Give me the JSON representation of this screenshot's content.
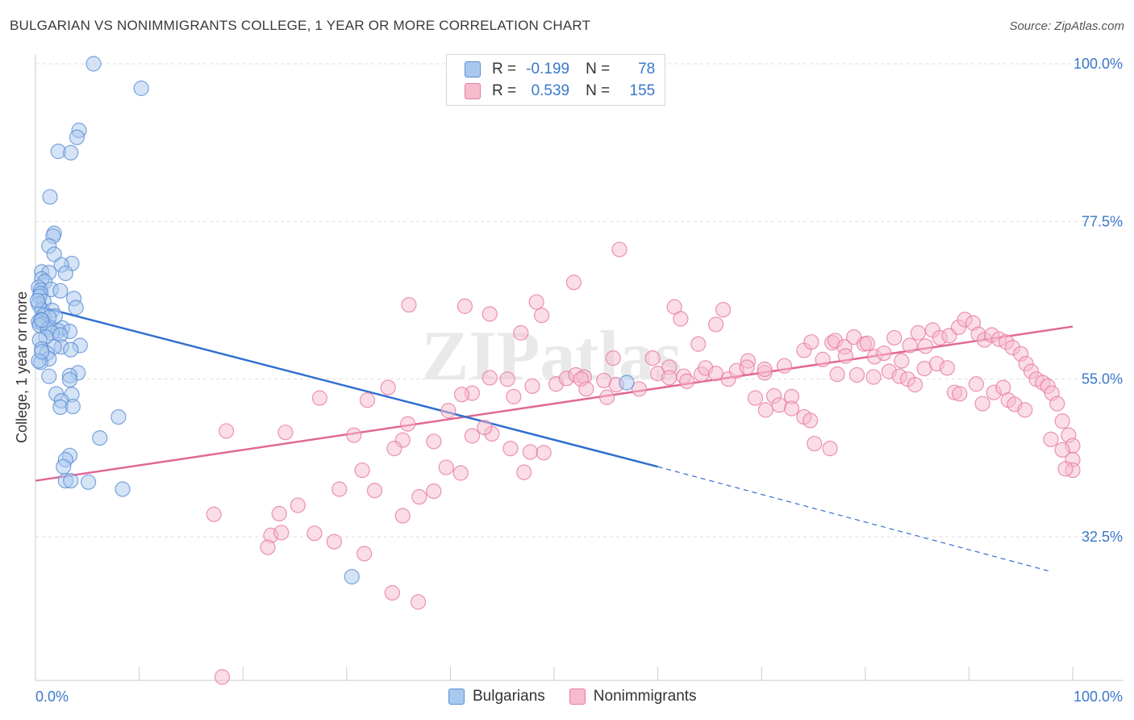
{
  "title": "BULGARIAN VS NONIMMIGRANTS COLLEGE, 1 YEAR OR MORE CORRELATION CHART",
  "source": "Source: ZipAtlas.com",
  "watermark": "ZIPatlas",
  "legend": {
    "rows": [
      {
        "r_label": "R =",
        "r_value": "-0.199",
        "n_label": "N =",
        "n_value": "78"
      },
      {
        "r_label": "R =",
        "r_value": "0.539",
        "n_label": "N =",
        "n_value": "155"
      }
    ]
  },
  "bottom_legend": [
    "Bulgarians",
    "Nonimmigrants"
  ],
  "colors": {
    "blue_fill": "#a9c8ee",
    "blue_stroke": "#5b8fd6",
    "blue_line": "#2f6fd0",
    "pink_fill": "#f6bccd",
    "pink_stroke": "#e8799d",
    "pink_line": "#e06896",
    "tick_label": "#3a78c9",
    "grid": "#dedede"
  },
  "chart_data": {
    "type": "scatter",
    "title": "BULGARIAN VS NONIMMIGRANTS COLLEGE, 1 YEAR OR MORE CORRELATION CHART",
    "ylabel": "College, 1 year or more",
    "xlabel": "",
    "xlim": [
      0,
      100
    ],
    "ylim": [
      12,
      100
    ],
    "x_tick_labels": [
      "0.0%",
      "100.0%"
    ],
    "y_ticks": [
      32.5,
      55.0,
      77.5,
      100.0
    ],
    "y_tick_labels": [
      "32.5%",
      "55.0%",
      "77.5%",
      "100.0%"
    ],
    "grid": true,
    "legend_position": "top-center",
    "series": [
      {
        "name": "Bulgarians",
        "r": -0.199,
        "n": 78,
        "trend": {
          "x0": 0,
          "y0": 65.5,
          "x1": 60,
          "y1": 42.5,
          "dash_x1": 98,
          "dash_y1": 27.5
        },
        "points": [
          [
            5.6,
            100
          ],
          [
            10.2,
            96.5
          ],
          [
            4.2,
            90.5
          ],
          [
            4.0,
            89.5
          ],
          [
            2.2,
            87.5
          ],
          [
            3.4,
            87.3
          ],
          [
            1.4,
            81
          ],
          [
            1.8,
            75.8
          ],
          [
            1.7,
            75.4
          ],
          [
            1.3,
            74
          ],
          [
            1.8,
            72.8
          ],
          [
            3.5,
            71.5
          ],
          [
            2.5,
            71.3
          ],
          [
            0.6,
            70.3
          ],
          [
            1.3,
            70.2
          ],
          [
            2.9,
            70.1
          ],
          [
            0.6,
            69.3
          ],
          [
            0.9,
            68.9
          ],
          [
            0.3,
            68.1
          ],
          [
            0.5,
            67.7
          ],
          [
            1.5,
            67.8
          ],
          [
            2.4,
            67.6
          ],
          [
            0.5,
            67.2
          ],
          [
            0.4,
            66.8
          ],
          [
            3.7,
            66.5
          ],
          [
            0.8,
            66.1
          ],
          [
            0.3,
            65.7
          ],
          [
            3.9,
            65.2
          ],
          [
            0.6,
            64.9
          ],
          [
            1.6,
            64.8
          ],
          [
            0.8,
            64.1
          ],
          [
            1.9,
            64.0
          ],
          [
            1.3,
            63.8
          ],
          [
            0.5,
            63.5
          ],
          [
            0.3,
            63.2
          ],
          [
            0.7,
            62.9
          ],
          [
            0.4,
            62.7
          ],
          [
            1.4,
            62.4
          ],
          [
            2.6,
            62.3
          ],
          [
            1.2,
            62.1
          ],
          [
            2.2,
            61.9
          ],
          [
            1.6,
            61.6
          ],
          [
            3.3,
            61.8
          ],
          [
            2.4,
            61.3
          ],
          [
            1.0,
            61.0
          ],
          [
            0.4,
            60.6
          ],
          [
            4.3,
            59.8
          ],
          [
            2.5,
            59.6
          ],
          [
            0.6,
            59.3
          ],
          [
            1.8,
            59.6
          ],
          [
            3.4,
            59.2
          ],
          [
            1.1,
            58.7
          ],
          [
            1.3,
            57.9
          ],
          [
            0.5,
            57.4
          ],
          [
            4.1,
            55.9
          ],
          [
            1.3,
            55.4
          ],
          [
            3.3,
            55.5
          ],
          [
            3.3,
            54.9
          ],
          [
            2.0,
            52.9
          ],
          [
            3.5,
            52.8
          ],
          [
            2.5,
            51.9
          ],
          [
            2.4,
            51.0
          ],
          [
            3.6,
            51.1
          ],
          [
            8.0,
            49.6
          ],
          [
            6.2,
            46.6
          ],
          [
            3.3,
            44.1
          ],
          [
            2.9,
            43.5
          ],
          [
            2.7,
            42.5
          ],
          [
            2.9,
            40.5
          ],
          [
            3.4,
            40.5
          ],
          [
            5.1,
            40.3
          ],
          [
            8.4,
            39.3
          ],
          [
            30.5,
            26.8
          ],
          [
            0.3,
            57.6
          ],
          [
            0.6,
            58.9
          ],
          [
            57.0,
            54.5
          ],
          [
            0.2,
            66.2
          ],
          [
            0.6,
            63.4
          ]
        ]
      },
      {
        "name": "Nonimmigrants",
        "r": 0.539,
        "n": 155,
        "trend": {
          "x0": 0,
          "y0": 40.5,
          "x1": 100,
          "y1": 62.5
        },
        "points": [
          [
            18.0,
            12.5
          ],
          [
            34.4,
            24.5
          ],
          [
            31.7,
            30.1
          ],
          [
            28.8,
            31.8
          ],
          [
            36.9,
            23.2
          ],
          [
            22.7,
            32.7
          ],
          [
            26.9,
            33.0
          ],
          [
            35.4,
            35.5
          ],
          [
            23.5,
            35.8
          ],
          [
            25.3,
            37.0
          ],
          [
            37.0,
            38.2
          ],
          [
            38.4,
            39.0
          ],
          [
            29.3,
            39.3
          ],
          [
            32.7,
            39.1
          ],
          [
            41.0,
            41.6
          ],
          [
            31.5,
            42.0
          ],
          [
            39.6,
            42.4
          ],
          [
            30.7,
            47.0
          ],
          [
            35.4,
            46.3
          ],
          [
            38.4,
            46.1
          ],
          [
            34.6,
            45.1
          ],
          [
            42.1,
            46.9
          ],
          [
            44.0,
            47.2
          ],
          [
            45.8,
            45.1
          ],
          [
            47.7,
            44.6
          ],
          [
            49.0,
            44.5
          ],
          [
            47.1,
            41.7
          ],
          [
            43.3,
            48.1
          ],
          [
            35.9,
            48.6
          ],
          [
            32.0,
            52.0
          ],
          [
            27.4,
            52.3
          ],
          [
            24.1,
            47.4
          ],
          [
            23.7,
            33.1
          ],
          [
            22.4,
            31.0
          ],
          [
            18.4,
            47.6
          ],
          [
            17.2,
            35.7
          ],
          [
            34.0,
            53.8
          ],
          [
            39.8,
            50.5
          ],
          [
            42.1,
            53.0
          ],
          [
            41.1,
            52.8
          ],
          [
            46.1,
            52.5
          ],
          [
            45.5,
            55.0
          ],
          [
            43.8,
            55.2
          ],
          [
            47.9,
            54.0
          ],
          [
            50.2,
            54.3
          ],
          [
            51.2,
            55.1
          ],
          [
            52.1,
            55.6
          ],
          [
            52.9,
            55.3
          ],
          [
            52.6,
            55.0
          ],
          [
            53.1,
            53.6
          ],
          [
            54.8,
            54.8
          ],
          [
            55.7,
            58.0
          ],
          [
            56.0,
            54.2
          ],
          [
            55.1,
            52.4
          ],
          [
            58.2,
            53.6
          ],
          [
            59.5,
            58.0
          ],
          [
            60.0,
            55.8
          ],
          [
            61.1,
            56.7
          ],
          [
            61.1,
            55.2
          ],
          [
            62.5,
            55.4
          ],
          [
            62.8,
            54.7
          ],
          [
            64.2,
            55.7
          ],
          [
            64.6,
            56.6
          ],
          [
            65.6,
            55.8
          ],
          [
            66.8,
            55.0
          ],
          [
            67.6,
            56.2
          ],
          [
            68.7,
            57.6
          ],
          [
            70.3,
            55.9
          ],
          [
            71.2,
            52.6
          ],
          [
            72.2,
            56.9
          ],
          [
            72.9,
            52.5
          ],
          [
            74.1,
            59.1
          ],
          [
            74.8,
            60.3
          ],
          [
            75.9,
            57.8
          ],
          [
            76.8,
            60.2
          ],
          [
            77.1,
            60.5
          ],
          [
            78.0,
            59.6
          ],
          [
            78.9,
            61.0
          ],
          [
            79.9,
            60.0
          ],
          [
            80.2,
            60.1
          ],
          [
            80.9,
            58.2
          ],
          [
            81.8,
            58.7
          ],
          [
            82.8,
            60.9
          ],
          [
            83.5,
            57.6
          ],
          [
            84.3,
            59.8
          ],
          [
            85.1,
            61.6
          ],
          [
            85.8,
            59.7
          ],
          [
            86.5,
            62.0
          ],
          [
            87.2,
            60.9
          ],
          [
            88.1,
            61.2
          ],
          [
            89.0,
            62.4
          ],
          [
            89.6,
            63.5
          ],
          [
            90.4,
            63.0
          ],
          [
            90.9,
            61.4
          ],
          [
            91.5,
            60.6
          ],
          [
            92.2,
            61.3
          ],
          [
            92.9,
            60.7
          ],
          [
            93.6,
            60.3
          ],
          [
            94.2,
            59.5
          ],
          [
            95.0,
            58.6
          ],
          [
            95.5,
            57.2
          ],
          [
            96.0,
            56.1
          ],
          [
            96.5,
            55.0
          ],
          [
            97.1,
            54.5
          ],
          [
            97.6,
            54.0
          ],
          [
            98.0,
            53.0
          ],
          [
            98.5,
            51.5
          ],
          [
            99.0,
            49.0
          ],
          [
            99.6,
            47.0
          ],
          [
            100.0,
            45.5
          ],
          [
            100.0,
            43.5
          ],
          [
            100.0,
            42.0
          ],
          [
            97.9,
            46.4
          ],
          [
            99.0,
            44.9
          ],
          [
            99.3,
            42.2
          ],
          [
            46.8,
            61.6
          ],
          [
            36.0,
            65.6
          ],
          [
            41.4,
            65.4
          ],
          [
            43.8,
            64.3
          ],
          [
            48.8,
            64.1
          ],
          [
            48.3,
            66.0
          ],
          [
            51.9,
            68.8
          ],
          [
            56.3,
            73.5
          ],
          [
            61.6,
            65.3
          ],
          [
            62.2,
            63.6
          ],
          [
            63.9,
            60.0
          ],
          [
            65.6,
            62.8
          ],
          [
            66.3,
            64.9
          ],
          [
            68.6,
            56.7
          ],
          [
            69.4,
            52.3
          ],
          [
            70.3,
            56.4
          ],
          [
            70.4,
            50.6
          ],
          [
            71.7,
            51.3
          ],
          [
            72.9,
            50.8
          ],
          [
            74.1,
            49.6
          ],
          [
            74.7,
            49.1
          ],
          [
            75.1,
            45.8
          ],
          [
            76.6,
            45.1
          ],
          [
            77.3,
            55.7
          ],
          [
            78.1,
            58.3
          ],
          [
            79.2,
            55.6
          ],
          [
            80.8,
            55.3
          ],
          [
            82.3,
            56.1
          ],
          [
            83.3,
            55.4
          ],
          [
            84.1,
            55.0
          ],
          [
            84.8,
            54.2
          ],
          [
            85.7,
            56.5
          ],
          [
            86.9,
            57.2
          ],
          [
            87.9,
            56.6
          ],
          [
            88.6,
            53.1
          ],
          [
            89.1,
            52.9
          ],
          [
            90.7,
            54.3
          ],
          [
            91.3,
            51.5
          ],
          [
            92.4,
            53.1
          ],
          [
            93.3,
            53.8
          ],
          [
            93.8,
            52.0
          ],
          [
            94.4,
            51.4
          ],
          [
            95.4,
            50.6
          ]
        ]
      }
    ]
  }
}
